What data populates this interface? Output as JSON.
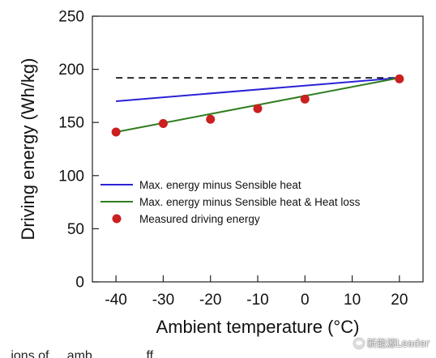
{
  "chart_data": {
    "type": "line",
    "xlabel": "Ambient temperature (°C)",
    "ylabel": "Driving energy (Wh/kg)",
    "xlim": [
      -45,
      25
    ],
    "ylim": [
      0,
      250
    ],
    "xticks": [
      "-40",
      "-30",
      "-20",
      "-10",
      "0",
      "10",
      "20"
    ],
    "yticks": [
      "0",
      "50",
      "100",
      "150",
      "200",
      "250"
    ],
    "grid": false,
    "legend_position": "lower-left",
    "reference_line": {
      "style": "dashed",
      "color": "#111111",
      "x": [
        -40,
        20
      ],
      "y": [
        192,
        192
      ]
    },
    "series": [
      {
        "name": "Max. energy minus Sensible heat",
        "kind": "line",
        "color": "#2b22d6",
        "x": [
          -40,
          20
        ],
        "y": [
          170,
          192
        ]
      },
      {
        "name": "Max. energy minus Sensible heat & Heat loss",
        "kind": "line",
        "color": "#2f7d1e",
        "x": [
          -40,
          20
        ],
        "y": [
          141,
          192
        ]
      },
      {
        "name": "Measured driving energy",
        "kind": "scatter",
        "color": "#cc1f1f",
        "x": [
          -40,
          -30,
          -20,
          -10,
          0,
          20
        ],
        "y": [
          141,
          149,
          153,
          163,
          172,
          191
        ]
      }
    ]
  },
  "watermark": {
    "text": "新能源Leader",
    "icon": "wechat-icon"
  },
  "caption_fragment": "...ions of ... amb... ... ... ...ff..."
}
